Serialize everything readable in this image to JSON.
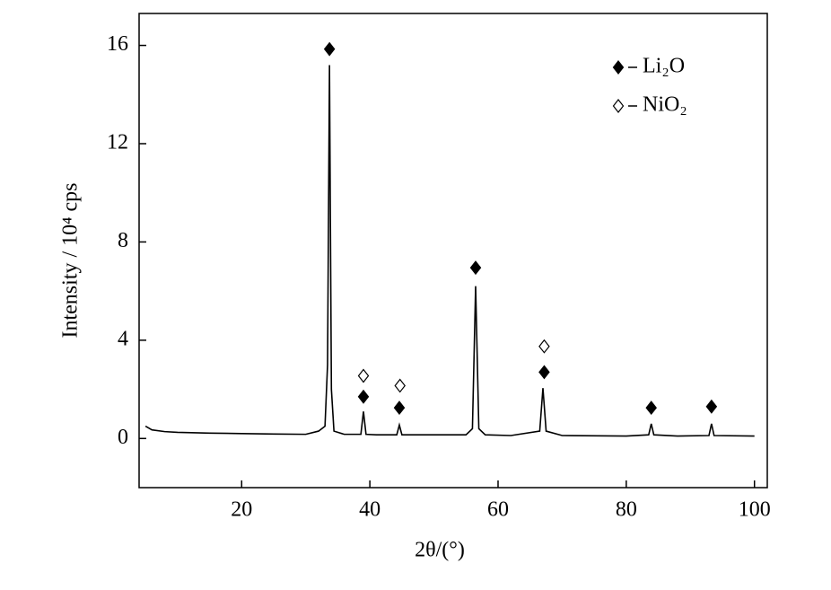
{
  "chart_data": {
    "type": "line",
    "xlabel": "2θ/(°)",
    "ylabel": "Intensity / 10⁴ cps",
    "xlim": [
      4,
      102
    ],
    "ylim": [
      -2,
      17.3
    ],
    "xticks": [
      20,
      40,
      60,
      80,
      100
    ],
    "yticks": [
      0,
      4,
      8,
      12,
      16
    ],
    "series": [
      {
        "color": "#000000",
        "x": [
          5,
          6,
          8,
          10,
          15,
          20,
          25,
          30,
          32,
          33,
          33.4,
          33.7,
          34,
          34.4,
          36,
          38.6,
          39,
          39.4,
          41,
          44.2,
          44.6,
          45,
          50,
          55,
          56,
          56.5,
          57,
          58,
          62,
          66.5,
          67,
          67.5,
          70,
          80,
          83.5,
          83.9,
          84.3,
          88,
          92.9,
          93.3,
          93.7,
          100
        ],
        "values": [
          0.5,
          0.35,
          0.28,
          0.25,
          0.22,
          0.2,
          0.18,
          0.17,
          0.3,
          0.5,
          3,
          15.2,
          2,
          0.3,
          0.17,
          0.17,
          1.1,
          0.17,
          0.15,
          0.15,
          0.55,
          0.15,
          0.15,
          0.15,
          0.4,
          6.2,
          0.4,
          0.15,
          0.12,
          0.3,
          2.05,
          0.3,
          0.12,
          0.1,
          0.15,
          0.6,
          0.15,
          0.1,
          0.12,
          0.6,
          0.12,
          0.1
        ]
      }
    ],
    "markers": [
      {
        "name": "Li₂O",
        "filled": true,
        "x": [
          33.7,
          39,
          44.6,
          56.5,
          67.2,
          83.9,
          93.3
        ],
        "y": [
          15.85,
          1.7,
          1.25,
          6.95,
          2.7,
          1.25,
          1.3
        ]
      },
      {
        "name": "NiO₂",
        "filled": false,
        "x": [
          39,
          44.7,
          67.2
        ],
        "y": [
          2.55,
          2.15,
          3.75
        ]
      }
    ]
  }
}
